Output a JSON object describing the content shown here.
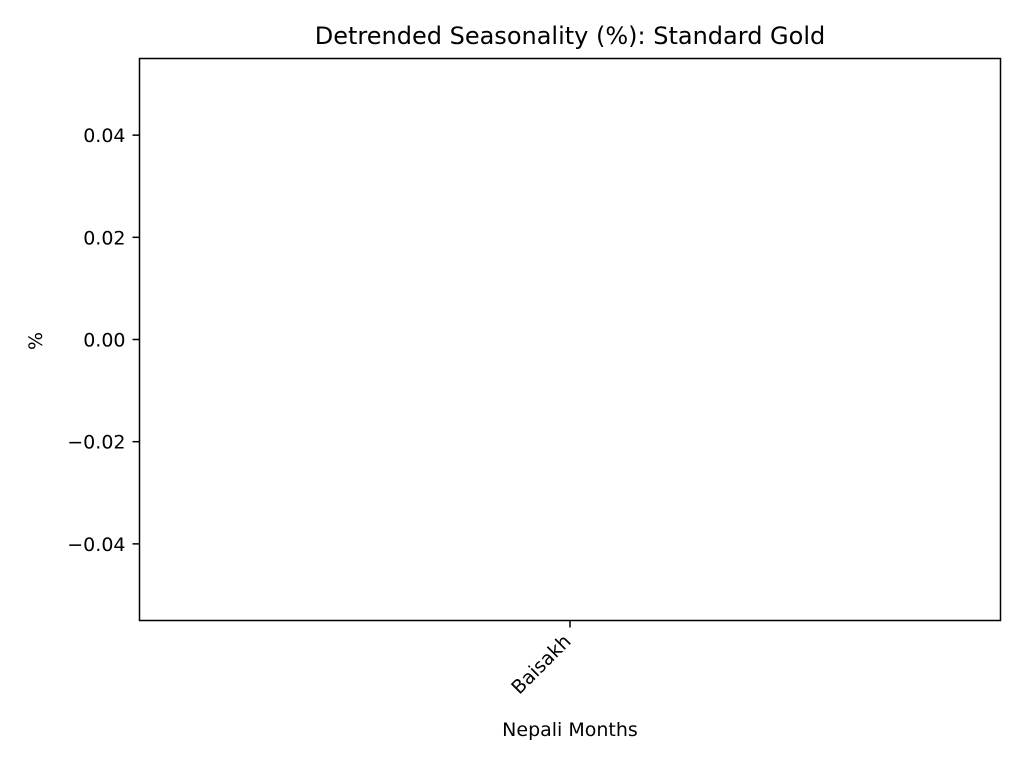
{
  "chart_data": {
    "type": "bar",
    "title": "Detrended Seasonality (%): Standard Gold",
    "xlabel": "Nepali Months",
    "ylabel": "%",
    "categories": [
      "Baisakh"
    ],
    "series": [
      {
        "values": [
          0.0
        ]
      }
    ],
    "ylim": [
      -0.055,
      0.055
    ],
    "yticks": [
      0.04,
      0.02,
      0.0,
      -0.02,
      -0.04
    ],
    "ytick_labels": [
      "0.04",
      "0.02",
      "0.00",
      "−0.02",
      "−0.04"
    ],
    "grid": false,
    "legend": "none"
  }
}
